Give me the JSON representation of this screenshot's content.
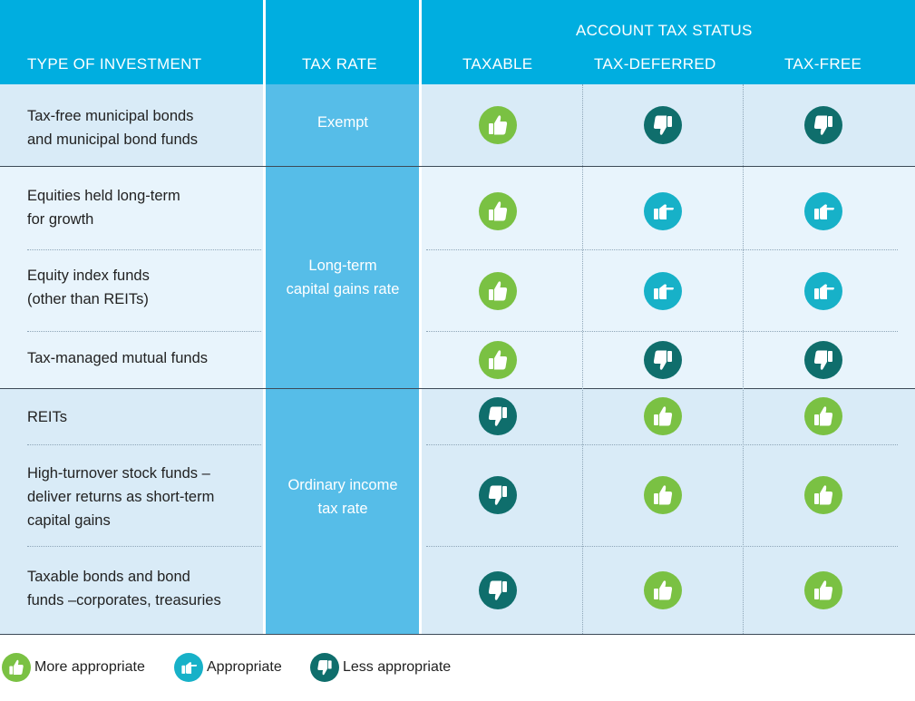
{
  "header": {
    "group_title": "ACCOUNT TAX STATUS",
    "col_investment": "TYPE OF INVESTMENT",
    "col_tax_rate": "TAX RATE",
    "col_taxable": "TAXABLE",
    "col_tax_deferred": "TAX-DEFERRED",
    "col_tax_free": "TAX-FREE"
  },
  "tax_rates": {
    "group1": "Exempt",
    "group2_line1": "Long-term",
    "group2_line2": "capital gains rate",
    "group3_line1": "Ordinary income",
    "group3_line2": "tax rate"
  },
  "rows": [
    {
      "line1": "Tax-free municipal bonds",
      "line2": "and municipal bond funds",
      "taxable": "more",
      "tax_deferred": "less",
      "tax_free": "less"
    },
    {
      "line1": "Equities held long-term",
      "line2": "for growth",
      "taxable": "more",
      "tax_deferred": "appropriate",
      "tax_free": "appropriate"
    },
    {
      "line1": "Equity index funds",
      "line2": "(other than REITs)",
      "taxable": "more",
      "tax_deferred": "appropriate",
      "tax_free": "appropriate"
    },
    {
      "line1": "Tax-managed mutual funds",
      "taxable": "more",
      "tax_deferred": "less",
      "tax_free": "less"
    },
    {
      "line1": "REITs",
      "taxable": "less",
      "tax_deferred": "more",
      "tax_free": "more"
    },
    {
      "line1": "High-turnover stock funds –",
      "line2": "deliver returns as short-term",
      "line3": "capital gains",
      "taxable": "less",
      "tax_deferred": "more",
      "tax_free": "more"
    },
    {
      "line1": "Taxable bonds and bond",
      "line2": "funds –corporates, treasuries",
      "taxable": "less",
      "tax_deferred": "more",
      "tax_free": "more"
    }
  ],
  "legend": {
    "more": "More appropriate",
    "appropriate": "Appropriate",
    "less": "Less appropriate"
  },
  "colors": {
    "header_bg": "#00aee0",
    "tax_column_bg": "#56bde8",
    "more_appropriate": "#7ac143",
    "appropriate": "#17b1c8",
    "less_appropriate": "#0f6e6c"
  },
  "icons": {
    "more": "thumbs-up-icon",
    "appropriate": "pointing-hand-icon",
    "less": "thumbs-down-icon"
  }
}
